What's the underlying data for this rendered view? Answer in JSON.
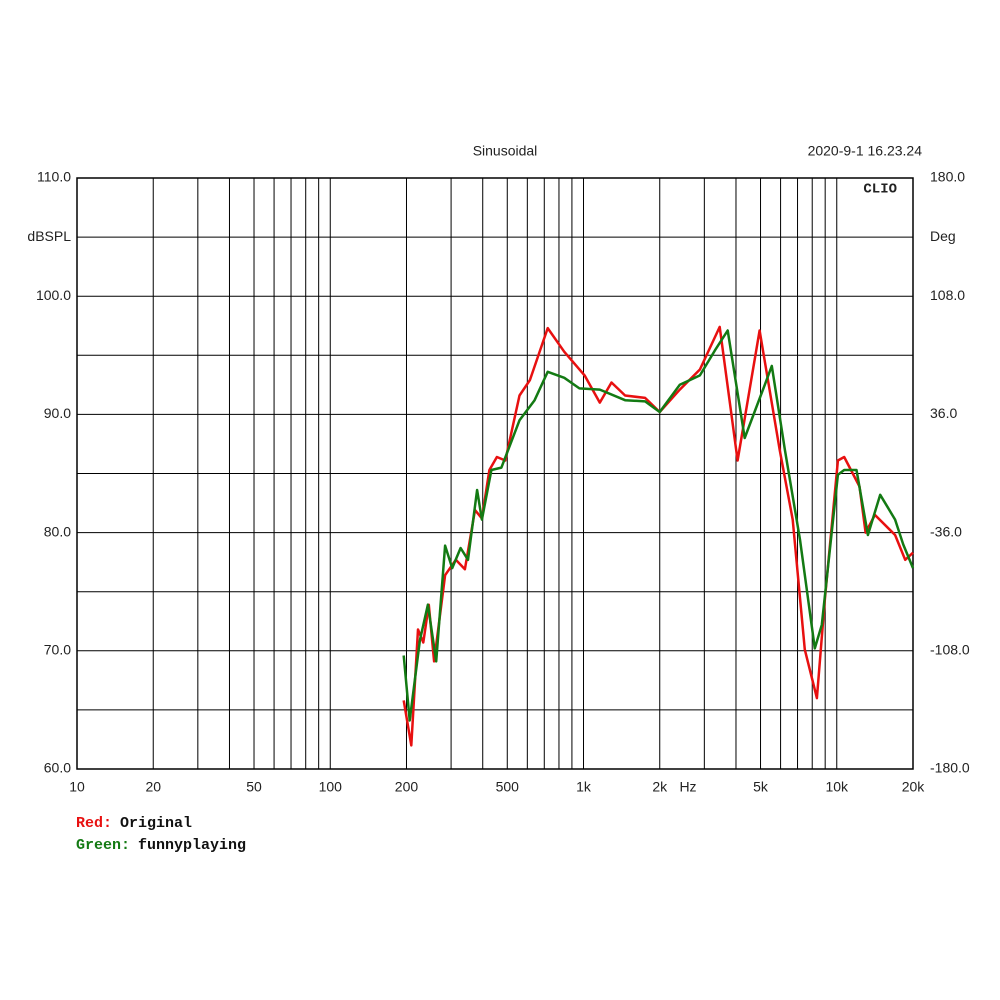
{
  "chart_data": {
    "type": "line",
    "title": "Sinusoidal",
    "timestamp": "2020-9-1 16.23.24",
    "annotation": "CLIO",
    "ylabel": "dBSPL",
    "y2label": "Deg",
    "xlabel": "Hz",
    "xscale": "log",
    "grid": true,
    "xlim": [
      10,
      20000
    ],
    "ylim": [
      60,
      110
    ],
    "y2lim": [
      -180,
      180
    ],
    "xticks": [
      10,
      20,
      50,
      100,
      200,
      500,
      {
        "value": 1000,
        "label": "1k"
      },
      {
        "value": 2000,
        "label": "2k"
      },
      {
        "value": 5000,
        "label": "5k"
      },
      {
        "value": 10000,
        "label": "10k"
      },
      {
        "value": 20000,
        "label": "20k"
      }
    ],
    "x_minor_grid": [
      30,
      40,
      60,
      70,
      80,
      90,
      300,
      400,
      600,
      700,
      800,
      900,
      3000,
      4000,
      6000,
      7000,
      8000,
      9000
    ],
    "yticks": [
      {
        "value": 60,
        "label": "60.0"
      },
      {
        "value": 70,
        "label": "70.0"
      },
      {
        "value": 80,
        "label": "80.0"
      },
      {
        "value": 90,
        "label": "90.0"
      },
      {
        "value": 100,
        "label": "100.0"
      },
      {
        "value": 110,
        "label": "110.0"
      }
    ],
    "y_minor_grid": [
      65,
      75,
      85,
      95,
      105
    ],
    "y2ticks": [
      {
        "value": -180,
        "label": "-180.0"
      },
      {
        "value": -108,
        "label": "-108.0"
      },
      {
        "value": -36,
        "label": "-36.0"
      },
      {
        "value": 36,
        "label": "36.0"
      },
      {
        "value": 108,
        "label": "108.0"
      },
      {
        "value": 180,
        "label": "180.0"
      }
    ],
    "series": [
      {
        "name": "Original",
        "color_label": "Red:",
        "color": "#e81010",
        "x": [
          195,
          209,
          222,
          233,
          245,
          257,
          284,
          313,
          340,
          373,
          397,
          425,
          455,
          491,
          559,
          614,
          722,
          840,
          1010,
          1160,
          1290,
          1460,
          1750,
          2000,
          2400,
          2880,
          3450,
          4060,
          4960,
          5950,
          6700,
          7480,
          8350,
          8970,
          10100,
          10700,
          12300,
          13000,
          14150,
          16990,
          18630,
          20000
        ],
        "values": [
          65.8,
          62.0,
          71.8,
          70.7,
          73.9,
          69.1,
          76.4,
          77.7,
          76.9,
          81.9,
          81.2,
          85.3,
          86.4,
          86.1,
          91.6,
          92.9,
          97.3,
          95.3,
          93.3,
          91.0,
          92.7,
          91.6,
          91.4,
          90.2,
          92.1,
          93.8,
          97.4,
          86.1,
          97.1,
          87.0,
          81.1,
          70.1,
          66.0,
          74.3,
          86.1,
          86.4,
          83.9,
          80.0,
          81.5,
          79.8,
          77.7,
          78.3
        ]
      },
      {
        "name": "funnyplaying",
        "color_label": "Green:",
        "color": "#137a13",
        "x": [
          195,
          206,
          226,
          243,
          262,
          284,
          303,
          327,
          350,
          380,
          397,
          433,
          474,
          559,
          641,
          722,
          840,
          963,
          1160,
          1460,
          1750,
          2000,
          2400,
          2880,
          3300,
          3710,
          4330,
          5200,
          5540,
          6240,
          7160,
          8190,
          8730,
          10100,
          10700,
          11970,
          13270,
          14840,
          16990,
          18290,
          20000
        ],
        "values": [
          69.6,
          64.1,
          70.9,
          73.9,
          69.1,
          78.9,
          77.0,
          78.7,
          77.7,
          83.6,
          81.1,
          85.3,
          85.5,
          89.5,
          91.2,
          93.6,
          93.1,
          92.2,
          92.1,
          91.2,
          91.1,
          90.2,
          92.5,
          93.3,
          95.4,
          97.1,
          88.0,
          92.5,
          94.1,
          87.0,
          79.4,
          70.2,
          72.2,
          84.9,
          85.3,
          85.3,
          79.8,
          83.2,
          81.1,
          79.0,
          77.0
        ]
      }
    ]
  }
}
